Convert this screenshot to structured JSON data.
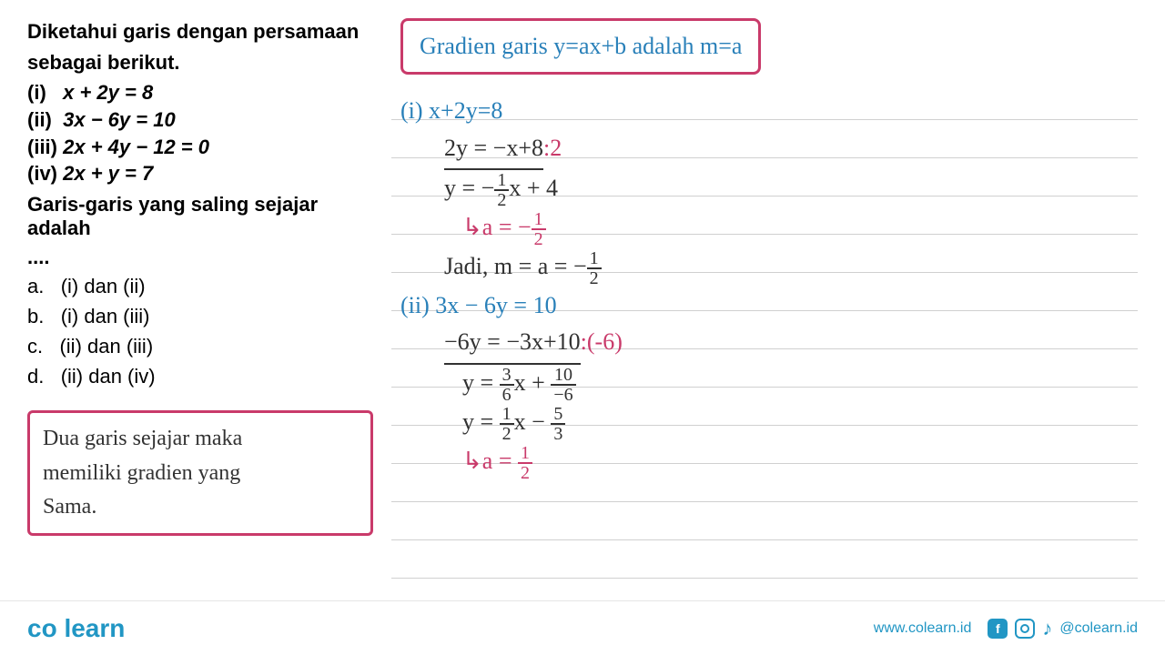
{
  "question": {
    "intro1": "Diketahui garis dengan persamaan",
    "intro2": "sebagai berikut.",
    "equations": [
      {
        "num": "(i)",
        "expr": "x + 2y = 8"
      },
      {
        "num": "(ii)",
        "expr": "3x − 6y = 10"
      },
      {
        "num": "(iii)",
        "expr": "2x + 4y − 12 = 0"
      },
      {
        "num": "(iv)",
        "expr": "2x + y = 7"
      }
    ],
    "sub": "Garis-garis yang saling sejajar adalah",
    "dots": "....",
    "options": [
      {
        "key": "a.",
        "txt": "(i) dan (ii)"
      },
      {
        "key": "b.",
        "txt": "(i) dan (iii)"
      },
      {
        "key": "c.",
        "txt": "(ii) dan (iii)"
      },
      {
        "key": "d.",
        "txt": "(ii) dan (iv)"
      }
    ]
  },
  "note_box": {
    "line1": "Dua garis sejajar maka",
    "line2": "memiliki gradien yang",
    "line3": "Sama."
  },
  "gradient_rule": "Gradien garis y=ax+b adalah m=a",
  "working": {
    "i_label": "(i) x+2y=8",
    "i_step1": "2y = −x+8",
    "i_div": ":2",
    "i_step2_pre": "y = −",
    "i_step2_frac_top": "1",
    "i_step2_frac_bot": "2",
    "i_step2_post": "x + 4",
    "i_result_pre": "↳a = −",
    "i_result_top": "1",
    "i_result_bot": "2",
    "i_conclusion_pre": "Jadi, m = a = −",
    "i_conclusion_top": "1",
    "i_conclusion_bot": "2",
    "ii_label": "(ii) 3x − 6y = 10",
    "ii_step1": "−6y = −3x+10",
    "ii_div": ":(-6)",
    "ii_step2_pre": "y = ",
    "ii_step2_f1t": "3",
    "ii_step2_f1b": "6",
    "ii_step2_mid": "x + ",
    "ii_step2_f2t": "10",
    "ii_step2_f2b": "−6",
    "ii_step3_pre": "y = ",
    "ii_step3_f1t": "1",
    "ii_step3_f1b": "2",
    "ii_step3_mid": "x − ",
    "ii_step3_f2t": "5",
    "ii_step3_f2b": "3",
    "ii_result_pre": "↳a = ",
    "ii_result_top": "1",
    "ii_result_bot": "2"
  },
  "footer": {
    "brand": "co learn",
    "url": "www.colearn.id",
    "handle": "@colearn.id"
  },
  "colors": {
    "blue": "#2980b9",
    "dark": "#323232",
    "red": "#c93a6a",
    "brand": "#2196c4",
    "grid": "#d0d0d0"
  }
}
